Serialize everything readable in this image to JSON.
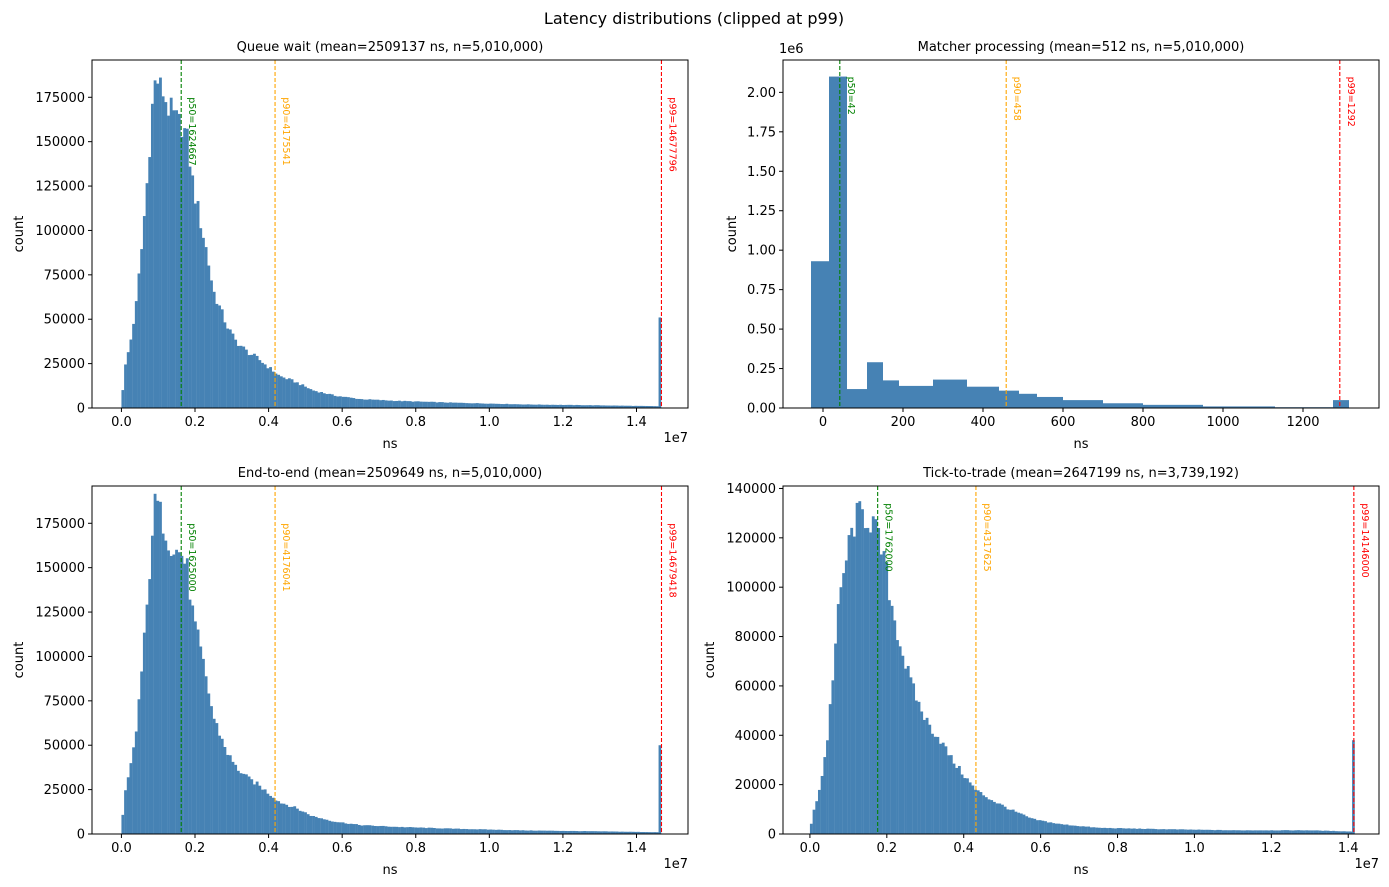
{
  "figure": {
    "title": "Latency distributions (clipped at p99)"
  },
  "colors": {
    "bar": "#4682b4",
    "p50": "#008000",
    "p90": "#ffa500",
    "p99": "#ff0000"
  },
  "chart_data": [
    {
      "type": "bar",
      "title": "Queue wait  (mean=2509137 ns, n=5,010,000)",
      "xlabel": "ns",
      "ylabel": "count",
      "x_offset_text": "1e7",
      "y_offset_text": "",
      "xlim": [
        -800000,
        15400000
      ],
      "ylim": [
        0,
        196000
      ],
      "xticks": [
        0,
        2000000,
        4000000,
        6000000,
        8000000,
        10000000,
        12000000,
        14000000
      ],
      "xtick_labels": [
        "0.0",
        "0.2",
        "0.4",
        "0.6",
        "0.8",
        "1.0",
        "1.2",
        "1.4"
      ],
      "yticks": [
        0,
        25000,
        50000,
        75000,
        100000,
        125000,
        150000,
        175000
      ],
      "ytick_labels": [
        "0",
        "25000",
        "50000",
        "75000",
        "100000",
        "125000",
        "150000",
        "175000"
      ],
      "bin_start": 0,
      "bin_width": 73000,
      "profile": [
        [
          0,
          0
        ],
        [
          70000,
          20000
        ],
        [
          150000,
          28000
        ],
        [
          250000,
          38000
        ],
        [
          400000,
          58000
        ],
        [
          550000,
          90000
        ],
        [
          700000,
          128000
        ],
        [
          830000,
          168000
        ],
        [
          900000,
          181000
        ],
        [
          950000,
          187000
        ],
        [
          1050000,
          180000
        ],
        [
          1150000,
          178000
        ],
        [
          1250000,
          170000
        ],
        [
          1400000,
          165000
        ],
        [
          1550000,
          160000
        ],
        [
          1650000,
          160000
        ],
        [
          1800000,
          150000
        ],
        [
          1950000,
          125000
        ],
        [
          2100000,
          110000
        ],
        [
          2300000,
          90000
        ],
        [
          2500000,
          66000
        ],
        [
          2700000,
          55000
        ],
        [
          2900000,
          45000
        ],
        [
          3100000,
          38000
        ],
        [
          3400000,
          32000
        ],
        [
          3700000,
          28000
        ],
        [
          4000000,
          23000
        ],
        [
          4300000,
          18000
        ],
        [
          4700000,
          15000
        ],
        [
          5200000,
          10000
        ],
        [
          5800000,
          7000
        ],
        [
          6500000,
          5000
        ],
        [
          7500000,
          4000
        ],
        [
          9000000,
          3000
        ],
        [
          11000000,
          2000
        ],
        [
          13000000,
          1500
        ],
        [
          14600000,
          1000
        ]
      ],
      "spike": {
        "x": 14600000,
        "value": 51000
      },
      "markers": [
        {
          "name": "p50",
          "value": 1624667,
          "label": "p50=1624667"
        },
        {
          "name": "p90",
          "value": 4175541,
          "label": "p90=4175541"
        },
        {
          "name": "p99",
          "value": 14677796,
          "label": "p99=14677796"
        }
      ],
      "marker_label_y": 175000
    },
    {
      "type": "bar",
      "title": "Matcher processing  (mean=512 ns, n=5,010,000)",
      "xlabel": "ns",
      "ylabel": "count",
      "x_offset_text": "",
      "y_offset_text": "1e6",
      "xlim": [
        -100,
        1390
      ],
      "ylim": [
        0,
        2205000
      ],
      "xticks": [
        0,
        200,
        400,
        600,
        800,
        1000,
        1200
      ],
      "xtick_labels": [
        "0",
        "200",
        "400",
        "600",
        "800",
        "1000",
        "1200"
      ],
      "yticks": [
        0,
        250000,
        500000,
        750000,
        1000000,
        1250000,
        1500000,
        1750000,
        2000000
      ],
      "ytick_labels": [
        "0.00",
        "0.25",
        "0.50",
        "0.75",
        "1.00",
        "1.25",
        "1.50",
        "1.75",
        "2.00"
      ],
      "bin_edges": [
        -30,
        15,
        60,
        110,
        150,
        190,
        275,
        360,
        440,
        490,
        535,
        600,
        700,
        800,
        950,
        1130,
        1275,
        1315
      ],
      "bin_values": [
        930000,
        2100000,
        120000,
        290000,
        175000,
        140000,
        180000,
        135000,
        110000,
        90000,
        70000,
        50000,
        30000,
        20000,
        10000,
        5000,
        50000
      ],
      "markers": [
        {
          "name": "p50",
          "value": 42,
          "label": "p50=42"
        },
        {
          "name": "p90",
          "value": 458,
          "label": "p90=458"
        },
        {
          "name": "p99",
          "value": 1292,
          "label": "p99=1292"
        }
      ],
      "marker_label_y": 2100000
    },
    {
      "type": "bar",
      "title": "End-to-end  (mean=2509649 ns, n=5,010,000)",
      "xlabel": "ns",
      "ylabel": "count",
      "x_offset_text": "1e7",
      "y_offset_text": "",
      "xlim": [
        -800000,
        15400000
      ],
      "ylim": [
        0,
        196000
      ],
      "xticks": [
        0,
        2000000,
        4000000,
        6000000,
        8000000,
        10000000,
        12000000,
        14000000
      ],
      "xtick_labels": [
        "0.0",
        "0.2",
        "0.4",
        "0.6",
        "0.8",
        "1.0",
        "1.2",
        "1.4"
      ],
      "yticks": [
        0,
        25000,
        50000,
        75000,
        100000,
        125000,
        150000,
        175000
      ],
      "ytick_labels": [
        "0",
        "25000",
        "50000",
        "75000",
        "100000",
        "125000",
        "150000",
        "175000"
      ],
      "bin_start": 0,
      "bin_width": 73000,
      "profile": [
        [
          0,
          0
        ],
        [
          70000,
          20000
        ],
        [
          150000,
          28000
        ],
        [
          250000,
          38000
        ],
        [
          400000,
          58000
        ],
        [
          550000,
          92000
        ],
        [
          700000,
          128000
        ],
        [
          830000,
          170000
        ],
        [
          900000,
          183000
        ],
        [
          950000,
          188000
        ],
        [
          1050000,
          180000
        ],
        [
          1150000,
          176000
        ],
        [
          1250000,
          168000
        ],
        [
          1400000,
          162000
        ],
        [
          1550000,
          158000
        ],
        [
          1650000,
          158000
        ],
        [
          1800000,
          148000
        ],
        [
          1950000,
          122000
        ],
        [
          2100000,
          108000
        ],
        [
          2300000,
          88000
        ],
        [
          2500000,
          66000
        ],
        [
          2700000,
          55000
        ],
        [
          2900000,
          45000
        ],
        [
          3100000,
          38000
        ],
        [
          3400000,
          32000
        ],
        [
          3700000,
          28000
        ],
        [
          4000000,
          23000
        ],
        [
          4300000,
          18000
        ],
        [
          4700000,
          15000
        ],
        [
          5200000,
          10000
        ],
        [
          5800000,
          7000
        ],
        [
          6500000,
          5000
        ],
        [
          7500000,
          4000
        ],
        [
          9000000,
          3000
        ],
        [
          11000000,
          2000
        ],
        [
          13000000,
          1500
        ],
        [
          14600000,
          1000
        ]
      ],
      "spike": {
        "x": 14600000,
        "value": 50000
      },
      "markers": [
        {
          "name": "p50",
          "value": 1625000,
          "label": "p50=1625000"
        },
        {
          "name": "p90",
          "value": 4176041,
          "label": "p90=4176041"
        },
        {
          "name": "p99",
          "value": 14679418,
          "label": "p99=14679418"
        }
      ],
      "marker_label_y": 175000
    },
    {
      "type": "bar",
      "title": "Tick-to-trade  (mean=2647199 ns, n=3,739,192)",
      "xlabel": "ns",
      "ylabel": "count",
      "x_offset_text": "1e7",
      "y_offset_text": "",
      "xlim": [
        -700000,
        14800000
      ],
      "ylim": [
        0,
        141000
      ],
      "xticks": [
        0,
        2000000,
        4000000,
        6000000,
        8000000,
        10000000,
        12000000,
        14000000
      ],
      "xtick_labels": [
        "0.0",
        "0.2",
        "0.4",
        "0.6",
        "0.8",
        "1.0",
        "1.2",
        "1.4"
      ],
      "yticks": [
        0,
        20000,
        40000,
        60000,
        80000,
        100000,
        120000,
        140000
      ],
      "ytick_labels": [
        "0",
        "20000",
        "40000",
        "60000",
        "80000",
        "100000",
        "120000",
        "140000"
      ],
      "bin_start": 0,
      "bin_width": 70000,
      "profile": [
        [
          0,
          0
        ],
        [
          70000,
          8000
        ],
        [
          150000,
          12000
        ],
        [
          300000,
          22000
        ],
        [
          450000,
          38000
        ],
        [
          600000,
          65000
        ],
        [
          750000,
          92000
        ],
        [
          900000,
          108000
        ],
        [
          1050000,
          120000
        ],
        [
          1200000,
          128000
        ],
        [
          1350000,
          130000
        ],
        [
          1500000,
          128000
        ],
        [
          1650000,
          126000
        ],
        [
          1800000,
          118000
        ],
        [
          1950000,
          110000
        ],
        [
          2100000,
          95000
        ],
        [
          2300000,
          80000
        ],
        [
          2500000,
          68000
        ],
        [
          2700000,
          58000
        ],
        [
          2900000,
          50000
        ],
        [
          3100000,
          44000
        ],
        [
          3400000,
          38000
        ],
        [
          3700000,
          30000
        ],
        [
          4000000,
          24000
        ],
        [
          4300000,
          18000
        ],
        [
          4700000,
          14000
        ],
        [
          5200000,
          10000
        ],
        [
          5800000,
          6000
        ],
        [
          6500000,
          4000
        ],
        [
          7500000,
          2500
        ],
        [
          9000000,
          2000
        ],
        [
          11000000,
          1500
        ],
        [
          13000000,
          1500
        ],
        [
          14100000,
          1000
        ]
      ],
      "spike": {
        "x": 14100000,
        "value": 38000
      },
      "markers": [
        {
          "name": "p50",
          "value": 1762000,
          "label": "p50=1762000"
        },
        {
          "name": "p90",
          "value": 4317625,
          "label": "p90=4317625"
        },
        {
          "name": "p99",
          "value": 14146000,
          "label": "p99=14146000"
        }
      ],
      "marker_label_y": 134000
    }
  ]
}
